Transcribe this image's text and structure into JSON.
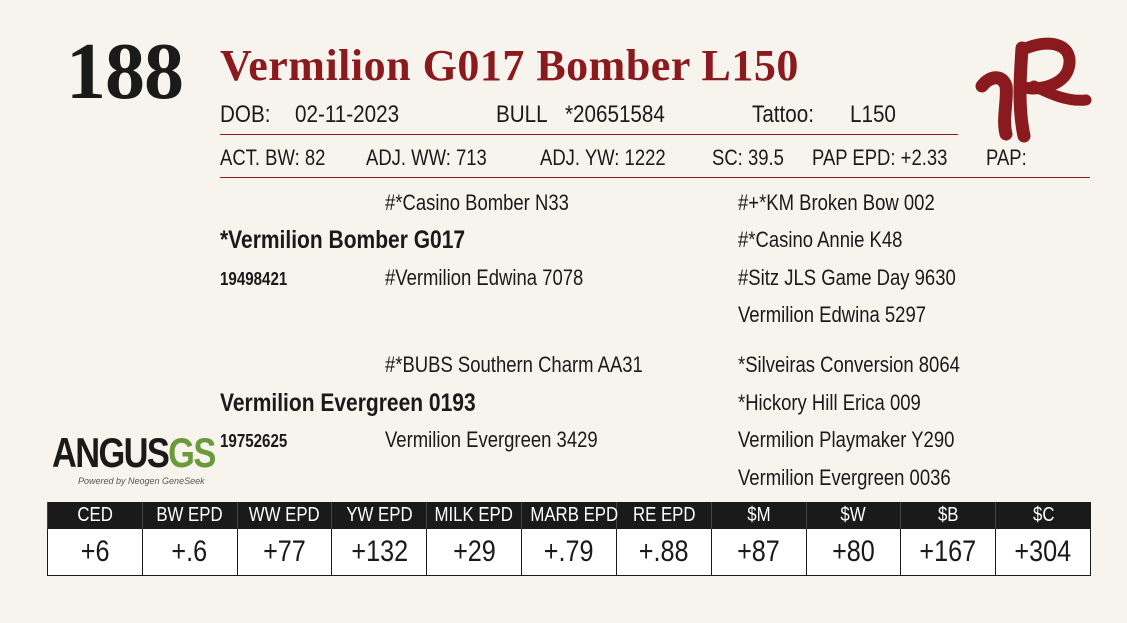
{
  "lot_number": "188",
  "animal_name": "Vermilion G017 Bomber L150",
  "details": {
    "dob_label": "DOB:",
    "dob": "02-11-2023",
    "sex": "BULL",
    "registration": "*20651584",
    "tattoo_label": "Tattoo:",
    "tattoo": "L150"
  },
  "performance": {
    "act_bw": "ACT. BW: 82",
    "adj_ww": "ADJ. WW: 713",
    "adj_yw": "ADJ. YW: 1222",
    "sc": "SC: 39.5",
    "pap_epd": "PAP EPD: +2.33",
    "pap": "PAP:"
  },
  "pedigree": {
    "sire": {
      "name": "*Vermilion Bomber G017",
      "reg": "19498421",
      "sire": "#*Casino Bomber N33",
      "dam": "#Vermilion Edwina 7078",
      "sire_sire": "#+*KM Broken Bow 002",
      "sire_dam": "#*Casino Annie K48",
      "dam_sire": "#Sitz JLS Game Day 9630",
      "dam_dam": "Vermilion Edwina 5297"
    },
    "dam": {
      "name": "Vermilion Evergreen 0193",
      "reg": "19752625",
      "sire": "#*BUBS Southern Charm AA31",
      "dam": "Vermilion Evergreen 3429",
      "sire_sire": "*Silveiras Conversion 8064",
      "sire_dam": "*Hickory Hill Erica 009",
      "dam_sire": "Vermilion Playmaker Y290",
      "dam_dam": "Vermilion Evergreen 0036"
    }
  },
  "brand_logo": {
    "text": "VR",
    "color": "#8b1a1f"
  },
  "angus_logo": {
    "word": "ANGUS",
    "suffix": "GS",
    "tagline": "Powered by Neogen GeneSeek"
  },
  "epd_table": {
    "headers": [
      "CED",
      "BW EPD",
      "WW EPD",
      "YW EPD",
      "MILK EPD",
      "MARB EPD",
      "RE EPD",
      "$M",
      "$W",
      "$B",
      "$C"
    ],
    "values": [
      "+6",
      "+.6",
      "+77",
      "+132",
      "+29",
      "+.79",
      "+.88",
      "+87",
      "+80",
      "+167",
      "+304"
    ]
  },
  "colors": {
    "accent": "#8b1a1f",
    "background": "#f7f4ee",
    "header_bg": "#1a1a1a"
  }
}
